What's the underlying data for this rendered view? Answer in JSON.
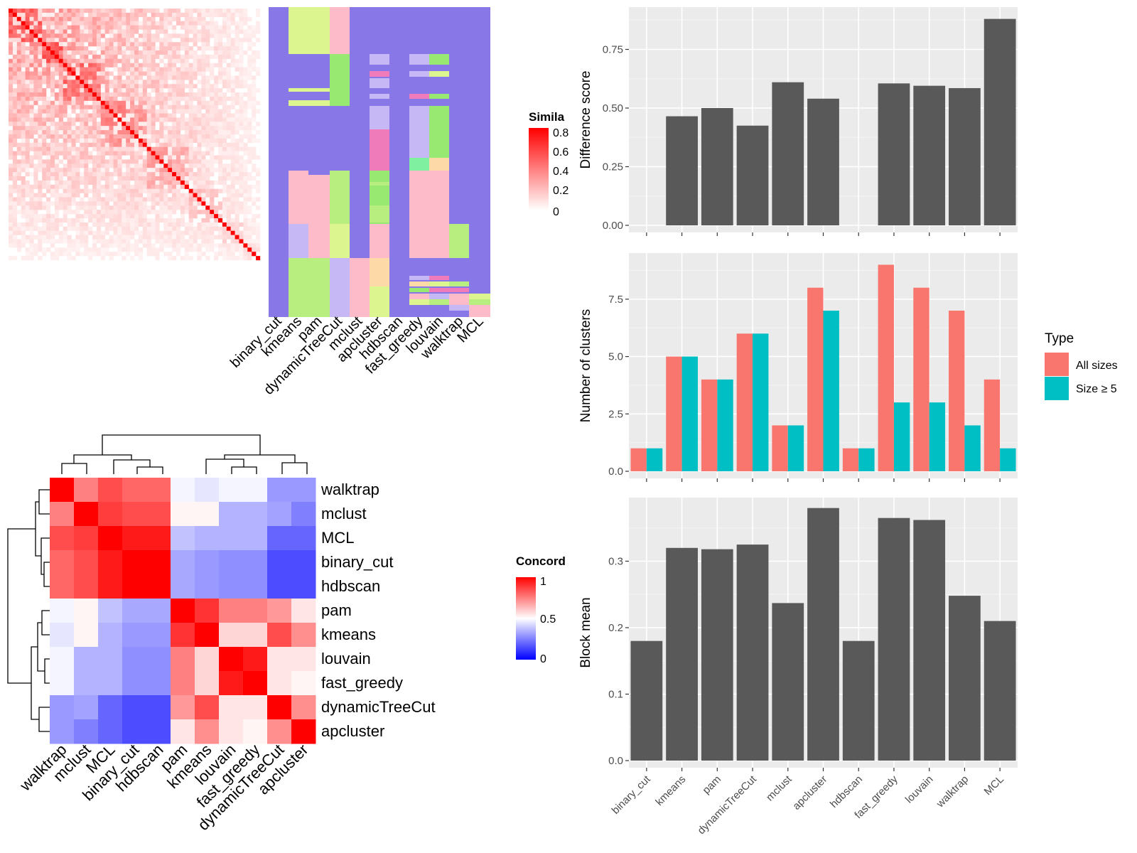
{
  "similarity_legend": {
    "title": "Simila",
    "ticks": [
      "0.8",
      "0.6",
      "0.4",
      "0.2",
      "0"
    ]
  },
  "concordance_legend": {
    "title": "Concord",
    "ticks": [
      "1",
      "0.5",
      "0"
    ]
  },
  "type_legend": {
    "title": "Type",
    "items": [
      "All sizes",
      "Size ≥ 5"
    ]
  },
  "colors": {
    "all_sizes": "#F8766D",
    "size5": "#00BFC4",
    "bar": "#595959",
    "panel": "#EBEBEB",
    "purple": "#8877E6"
  },
  "chart_data": [
    {
      "type": "heatmap",
      "name": "cell similarity",
      "cols": 60,
      "colormap": [
        "#FFFFFF",
        "#FF0000"
      ],
      "range": [
        0,
        0.85
      ]
    },
    {
      "type": "heatmap",
      "name": "cluster assignments",
      "columns": [
        "binary_cut",
        "kmeans",
        "pam",
        "dynamicTreeCut",
        "mclust",
        "apcluster",
        "hdbscan",
        "fast_greedy",
        "louvain",
        "walktrap",
        "MCL"
      ]
    },
    {
      "type": "heatmap",
      "name": "concordance",
      "rows": [
        "walktrap",
        "mclust",
        "MCL",
        "binary_cut",
        "hdbscan",
        "pam",
        "kmeans",
        "louvain",
        "fast_greedy",
        "dynamicTreeCut",
        "apcluster"
      ],
      "cols": [
        "walktrap",
        "mclust",
        "MCL",
        "binary_cut",
        "hdbscan",
        "pam",
        "kmeans",
        "louvain",
        "fast_greedy",
        "dynamicTreeCut",
        "apcluster"
      ],
      "values": [
        [
          1.0,
          0.75,
          0.85,
          0.8,
          0.8,
          0.48,
          0.45,
          0.48,
          0.48,
          0.3,
          0.3
        ],
        [
          0.75,
          1.0,
          0.88,
          0.85,
          0.85,
          0.52,
          0.52,
          0.35,
          0.35,
          0.32,
          0.25
        ],
        [
          0.85,
          0.88,
          1.0,
          0.95,
          0.95,
          0.38,
          0.35,
          0.35,
          0.35,
          0.2,
          0.2
        ],
        [
          0.8,
          0.85,
          0.95,
          1.0,
          1.0,
          0.33,
          0.3,
          0.28,
          0.28,
          0.15,
          0.15
        ],
        [
          0.8,
          0.85,
          0.95,
          1.0,
          1.0,
          0.33,
          0.3,
          0.28,
          0.28,
          0.15,
          0.15
        ],
        [
          0.48,
          0.52,
          0.38,
          0.33,
          0.33,
          1.0,
          0.9,
          0.75,
          0.75,
          0.7,
          0.55
        ],
        [
          0.45,
          0.52,
          0.35,
          0.3,
          0.3,
          0.9,
          1.0,
          0.58,
          0.58,
          0.85,
          0.72
        ],
        [
          0.48,
          0.35,
          0.35,
          0.28,
          0.28,
          0.75,
          0.58,
          1.0,
          0.95,
          0.55,
          0.55
        ],
        [
          0.48,
          0.35,
          0.35,
          0.28,
          0.28,
          0.75,
          0.58,
          0.95,
          1.0,
          0.55,
          0.52
        ],
        [
          0.3,
          0.32,
          0.2,
          0.15,
          0.15,
          0.7,
          0.85,
          0.55,
          0.55,
          1.0,
          0.72
        ],
        [
          0.3,
          0.25,
          0.2,
          0.15,
          0.15,
          0.55,
          0.72,
          0.55,
          0.52,
          0.72,
          1.0
        ]
      ],
      "range": [
        0,
        1
      ]
    },
    {
      "type": "bar",
      "categories": [
        "binary_cut",
        "kmeans",
        "pam",
        "dynamicTreeCut",
        "mclust",
        "apcluster",
        "hdbscan",
        "fast_greedy",
        "louvain",
        "walktrap",
        "MCL"
      ],
      "values": [
        null,
        0.465,
        0.5,
        0.425,
        0.61,
        0.54,
        null,
        0.605,
        0.595,
        0.585,
        0.88
      ],
      "ylabel": "Difference score",
      "ylim": [
        0,
        0.9
      ],
      "yticks": [
        "0.00",
        "0.25",
        "0.50",
        "0.75"
      ],
      "grid": true
    },
    {
      "type": "bar",
      "categories": [
        "binary_cut",
        "kmeans",
        "pam",
        "dynamicTreeCut",
        "mclust",
        "apcluster",
        "hdbscan",
        "fast_greedy",
        "louvain",
        "walktrap",
        "MCL"
      ],
      "series": [
        {
          "name": "All sizes",
          "values": [
            1,
            5,
            4,
            6,
            2,
            8,
            1,
            9,
            8,
            7,
            4
          ]
        },
        {
          "name": "Size ≥ 5",
          "values": [
            1,
            5,
            4,
            6,
            2,
            7,
            1,
            3,
            3,
            2,
            1
          ]
        }
      ],
      "ylabel": "Number of clusters",
      "ylim": [
        0,
        9.2
      ],
      "yticks": [
        "0.0",
        "2.5",
        "5.0",
        "7.5"
      ],
      "grid": true,
      "legend": "right"
    },
    {
      "type": "bar",
      "categories": [
        "binary_cut",
        "kmeans",
        "pam",
        "dynamicTreeCut",
        "mclust",
        "apcluster",
        "hdbscan",
        "fast_greedy",
        "louvain",
        "walktrap",
        "MCL"
      ],
      "values": [
        0.18,
        0.32,
        0.318,
        0.325,
        0.237,
        0.38,
        0.18,
        0.365,
        0.362,
        0.248,
        0.21
      ],
      "ylabel": "Block mean",
      "ylim": [
        0,
        0.385
      ],
      "yticks": [
        "0.0",
        "0.1",
        "0.2",
        "0.3"
      ],
      "grid": true
    }
  ]
}
